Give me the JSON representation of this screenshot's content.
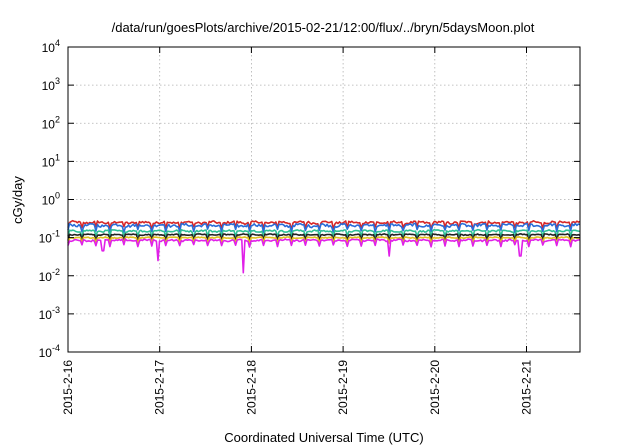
{
  "chart_data": {
    "type": "line",
    "title": "/data/run/goesPlots/archive/2015-02-21/12:00/flux/../bryn/5daysMoon.plot",
    "xlabel": "Coordinated Universal Time (UTC)",
    "ylabel": "cGy/day",
    "yscale": "log",
    "ylim": [
      0.0001,
      10000
    ],
    "y_ticks": [
      {
        "base": "10",
        "exp": "-4",
        "value": 0.0001
      },
      {
        "base": "10",
        "exp": "-3",
        "value": 0.001
      },
      {
        "base": "10",
        "exp": "-2",
        "value": 0.01
      },
      {
        "base": "10",
        "exp": "-1",
        "value": 0.1
      },
      {
        "base": "10",
        "exp": "0",
        "value": 1
      },
      {
        "base": "10",
        "exp": "1",
        "value": 10
      },
      {
        "base": "10",
        "exp": "2",
        "value": 100
      },
      {
        "base": "10",
        "exp": "3",
        "value": 1000
      },
      {
        "base": "10",
        "exp": "4",
        "value": 10000
      }
    ],
    "xlim": [
      "2015-2-16",
      "2015-2-21 14:00"
    ],
    "x_ticks": [
      "2015-2-16",
      "2015-2-17",
      "2015-2-18",
      "2015-2-19",
      "2015-2-20",
      "2015-2-21"
    ],
    "grid": true,
    "series": [
      {
        "color": "#d62728",
        "level": 0.25,
        "noise": 0.07,
        "dips": []
      },
      {
        "color": "#2a6cd8",
        "level": 0.21,
        "noise": 0.08,
        "dips": []
      },
      {
        "color": "#2fbf96",
        "level": 0.15,
        "noise": 0.05,
        "dips": []
      },
      {
        "color": "#222222",
        "level": 0.12,
        "noise": 0.03,
        "dips": []
      },
      {
        "color": "#e0c020",
        "level": 0.1,
        "noise": 0.03,
        "dips": []
      },
      {
        "color": "#e020e8",
        "level": 0.085,
        "noise": 0.05,
        "dips": [
          {
            "day": 0.38,
            "value": 0.045
          },
          {
            "day": 0.98,
            "value": 0.025
          },
          {
            "day": 1.91,
            "value": 0.012
          },
          {
            "day": 3.5,
            "value": 0.033
          },
          {
            "day": 4.93,
            "value": 0.033
          }
        ]
      }
    ]
  }
}
